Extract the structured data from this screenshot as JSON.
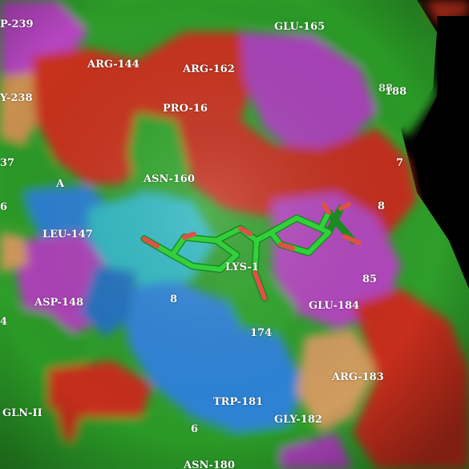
{
  "colors": {
    "background": "#000000",
    "hydrophobic_green": "#2e9e2a",
    "acidic_red": "#c9301c",
    "basic_magenta": "#b545c0",
    "polar_blue": "#2a7fd0",
    "cyan": "#30b8c4",
    "tan": "#d29a5c",
    "ligand_carbon": "#2fd13a",
    "ligand_oxygen": "#e05048"
  },
  "residue_labels": [
    {
      "id": "p239",
      "text": "P-239"
    },
    {
      "id": "glu165",
      "text": "GLU-165"
    },
    {
      "id": "arg144",
      "text": "ARG-144"
    },
    {
      "id": "arg162",
      "text": "ARG-162"
    },
    {
      "id": "y238",
      "text": "Y-238"
    },
    {
      "id": "x88",
      "text": "88"
    },
    {
      "id": "x188",
      "text": "188"
    },
    {
      "id": "pro16",
      "text": "PRO-16"
    },
    {
      "id": "x37",
      "text": "37"
    },
    {
      "id": "x7",
      "text": "7"
    },
    {
      "id": "a",
      "text": "A"
    },
    {
      "id": "asn160",
      "text": "ASN-160"
    },
    {
      "id": "x6",
      "text": "6"
    },
    {
      "id": "x8",
      "text": "8"
    },
    {
      "id": "leu147",
      "text": "LEU-147"
    },
    {
      "id": "lys1",
      "text": "LYS-1"
    },
    {
      "id": "x85",
      "text": "85"
    },
    {
      "id": "asp148",
      "text": "ASP-148"
    },
    {
      "id": "x8b",
      "text": "8"
    },
    {
      "id": "glu184",
      "text": "GLU-184"
    },
    {
      "id": "x4",
      "text": "4"
    },
    {
      "id": "x174",
      "text": "174"
    },
    {
      "id": "arg183",
      "text": "ARG-183"
    },
    {
      "id": "trp181",
      "text": "TRP-181"
    },
    {
      "id": "glnii",
      "text": "GLN-II"
    },
    {
      "id": "gly182",
      "text": "GLY-182"
    },
    {
      "id": "x6b",
      "text": "6"
    },
    {
      "id": "asn180",
      "text": "ASN-180"
    }
  ]
}
